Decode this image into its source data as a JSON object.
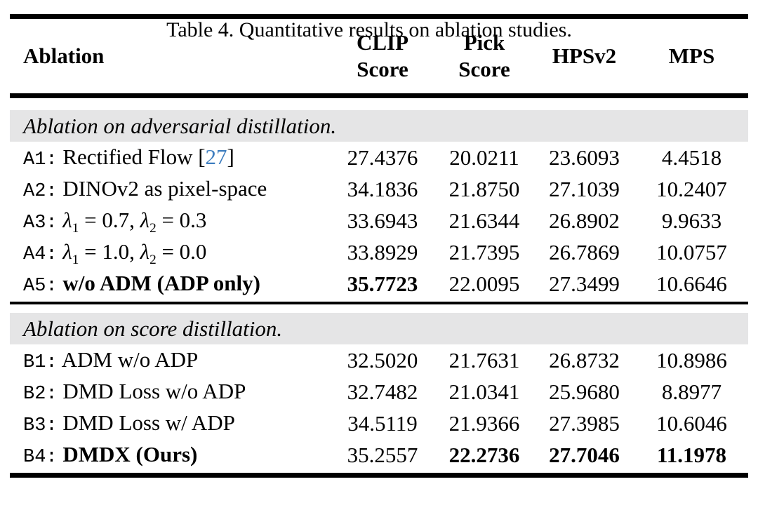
{
  "caption": "Table 4. Quantitative results on ablation studies.",
  "colors": {
    "citation_blue": "#3d7dbf",
    "section_band_gray": "#e5e5e6",
    "rule_black": "#000000"
  },
  "table": {
    "columns": [
      {
        "label": "Ablation"
      },
      {
        "label": "CLIP\nScore"
      },
      {
        "label": "Pick\nScore"
      },
      {
        "label": "HPSv2"
      },
      {
        "label": "MPS"
      }
    ],
    "sections": [
      {
        "title": "Ablation on adversarial distillation.",
        "rows": [
          {
            "id": "A1",
            "label_parts": [
              {
                "t": "Rectified Flow [",
                "s": "plain"
              },
              {
                "t": "27",
                "s": "cite"
              },
              {
                "t": "]",
                "s": "plain"
              }
            ],
            "values": [
              "27.4376",
              "20.0211",
              "23.6093",
              "4.4518"
            ],
            "bold": [
              false,
              false,
              false,
              false
            ]
          },
          {
            "id": "A2",
            "label_parts": [
              {
                "t": "DINOv2 as pixel-space",
                "s": "plain"
              }
            ],
            "values": [
              "34.1836",
              "21.8750",
              "27.1039",
              "10.2407"
            ],
            "bold": [
              false,
              false,
              false,
              false
            ]
          },
          {
            "id": "A3",
            "label_parts": [
              {
                "t": "λ",
                "s": "lambda"
              },
              {
                "t": "1",
                "s": "sub"
              },
              {
                "t": " = 0.7, ",
                "s": "plain"
              },
              {
                "t": "λ",
                "s": "lambda"
              },
              {
                "t": "2",
                "s": "sub"
              },
              {
                "t": " = 0.3",
                "s": "plain"
              }
            ],
            "values": [
              "33.6943",
              "21.6344",
              "26.8902",
              "9.9633"
            ],
            "bold": [
              false,
              false,
              false,
              false
            ]
          },
          {
            "id": "A4",
            "label_parts": [
              {
                "t": "λ",
                "s": "lambda"
              },
              {
                "t": "1",
                "s": "sub"
              },
              {
                "t": " = 1.0, ",
                "s": "plain"
              },
              {
                "t": "λ",
                "s": "lambda"
              },
              {
                "t": "2",
                "s": "sub"
              },
              {
                "t": " = 0.0",
                "s": "plain"
              }
            ],
            "values": [
              "33.8929",
              "21.7395",
              "26.7869",
              "10.0757"
            ],
            "bold": [
              false,
              false,
              false,
              false
            ]
          },
          {
            "id": "A5",
            "label_parts": [
              {
                "t": "w/o ADM (ADP only)",
                "s": "bold"
              }
            ],
            "values": [
              "35.7723",
              "22.0095",
              "27.3499",
              "10.6646"
            ],
            "bold": [
              true,
              false,
              false,
              false
            ]
          }
        ]
      },
      {
        "title": "Ablation on score distillation.",
        "rows": [
          {
            "id": "B1",
            "label_parts": [
              {
                "t": "ADM w/o ADP",
                "s": "plain"
              }
            ],
            "values": [
              "32.5020",
              "21.7631",
              "26.8732",
              "10.8986"
            ],
            "bold": [
              false,
              false,
              false,
              false
            ]
          },
          {
            "id": "B2",
            "label_parts": [
              {
                "t": "DMD Loss w/o ADP",
                "s": "plain"
              }
            ],
            "values": [
              "32.7482",
              "21.0341",
              "25.9680",
              "8.8977"
            ],
            "bold": [
              false,
              false,
              false,
              false
            ]
          },
          {
            "id": "B3",
            "label_parts": [
              {
                "t": "DMD Loss w/ ADP",
                "s": "plain"
              }
            ],
            "values": [
              "34.5119",
              "21.9366",
              "27.3985",
              "10.6046"
            ],
            "bold": [
              false,
              false,
              false,
              false
            ]
          },
          {
            "id": "B4",
            "label_parts": [
              {
                "t": "DMDX (Ours)",
                "s": "bold"
              }
            ],
            "values": [
              "35.2557",
              "22.2736",
              "27.7046",
              "11.1978"
            ],
            "bold": [
              false,
              true,
              true,
              true
            ]
          }
        ]
      }
    ]
  }
}
